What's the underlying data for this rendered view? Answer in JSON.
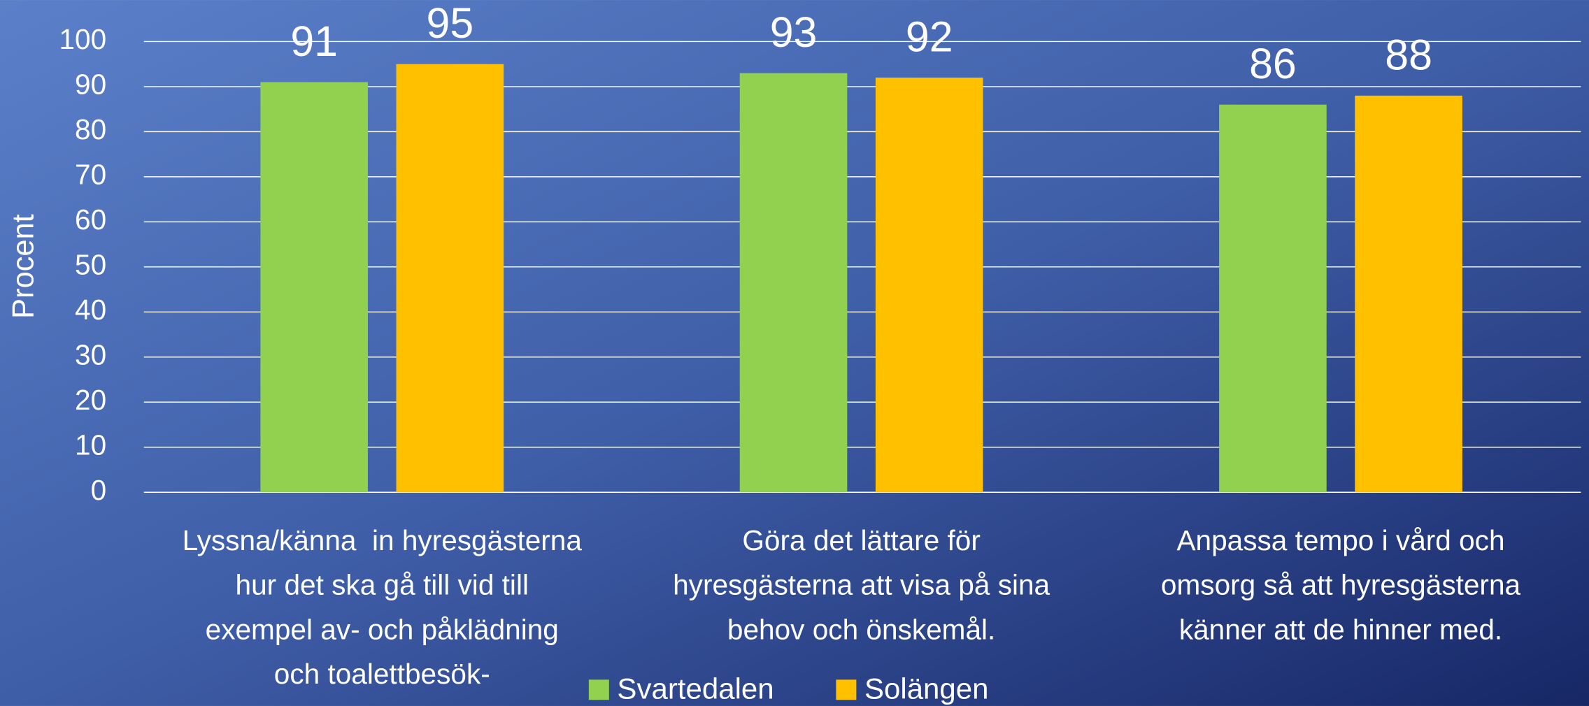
{
  "chart_data": {
    "type": "bar",
    "y_label": "Procent",
    "categories": [
      "Lyssna/känna  in hyresgästerna\nhur det ska gå till vid till\nexempel av- och påklädning\noch toalettbesök-",
      "Göra det lättare för\nhyresgästerna att visa på sina\nbehov och önskemål.",
      "Anpassa tempo i vård och\nomsorg så att hyresgästerna\nkänner att de hinner med."
    ],
    "series": [
      {
        "name": "Svartedalen",
        "color": "#92d050",
        "values": [
          91,
          93,
          86
        ]
      },
      {
        "name": "Solängen",
        "color": "#ffc000",
        "values": [
          95,
          92,
          88
        ]
      }
    ],
    "ylim": [
      0,
      100
    ],
    "yticks": [
      0,
      10,
      20,
      30,
      40,
      50,
      60,
      70,
      80,
      90,
      100
    ],
    "grid": true,
    "legend": "bottom"
  }
}
